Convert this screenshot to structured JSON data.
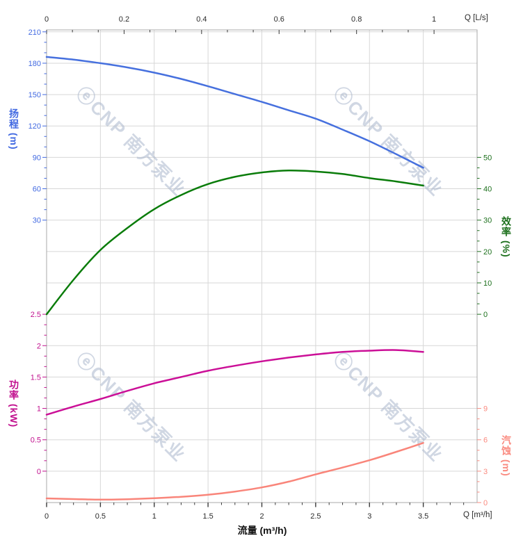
{
  "watermark": {
    "logo": "ⓔ",
    "text": "CNP 南方泵业",
    "color": "#a9b6cc"
  },
  "chart_data": {
    "type": "line",
    "title": "",
    "x_axis_bottom": {
      "label": "流量 (m³/h)",
      "unit": "Q [m³/h]",
      "min": 0,
      "max": 4,
      "major_step": 0.5,
      "minor_step": 0.125,
      "tick_labels": [
        "0",
        "0.5",
        "1",
        "1.5",
        "2",
        "2.5",
        "3",
        "3.5"
      ],
      "color": "#2b2b2b"
    },
    "x_axis_top": {
      "unit": "Q [L/s]",
      "min": 0,
      "max": 1,
      "major_step": 0.2,
      "minor_divisions": 3,
      "m3h_per_unit": 3.6,
      "tick_labels": [
        "0",
        "0.2",
        "0.4",
        "0.6",
        "0.8",
        "1"
      ],
      "color": "#2b2b2b"
    },
    "y_axes": [
      {
        "id": "head",
        "title": "扬程 (m)",
        "side": "left",
        "label_color": "#4169e1",
        "top_value": 210,
        "value_per_grid": 30,
        "grid_start": 0,
        "grid_end": 6,
        "minor_divisions": 3,
        "tick_labels": [
          "210",
          "180",
          "150",
          "120",
          "90",
          "60",
          "30"
        ]
      },
      {
        "id": "efficiency",
        "title": "效率 (%)",
        "side": "right",
        "label_color": "#1d701d",
        "top_value": 50,
        "value_per_grid": 10,
        "grid_start": 4,
        "grid_end": 9,
        "minor_divisions": 3,
        "tick_labels": [
          "50",
          "40",
          "30",
          "20",
          "10",
          "0"
        ]
      },
      {
        "id": "power",
        "title": "功率 (kW)",
        "side": "left",
        "label_color": "#c1108e",
        "top_value": 2.5,
        "value_per_grid": 0.5,
        "grid_start": 9,
        "grid_end": 14,
        "minor_divisions": 3,
        "tick_labels": [
          "2.5",
          "2",
          "1.5",
          "1",
          "0.5",
          "0"
        ]
      },
      {
        "id": "npsh",
        "title": "汽蚀 (m)",
        "side": "right",
        "label_color": "#fa8a7f",
        "top_value": 9,
        "value_per_grid": 3,
        "grid_start": 12,
        "grid_end": 15,
        "minor_divisions": 3,
        "tick_labels": [
          "9",
          "6",
          "3",
          "0"
        ]
      }
    ],
    "series": [
      {
        "name": "head",
        "axis": "head",
        "color": "#4670de",
        "points": [
          [
            0,
            186
          ],
          [
            0.25,
            183.5
          ],
          [
            0.5,
            180
          ],
          [
            0.75,
            176
          ],
          [
            1,
            171
          ],
          [
            1.25,
            165
          ],
          [
            1.5,
            158
          ],
          [
            1.75,
            150.5
          ],
          [
            2,
            143
          ],
          [
            2.25,
            135
          ],
          [
            2.5,
            127
          ],
          [
            2.75,
            116.5
          ],
          [
            3,
            105.5
          ],
          [
            3.25,
            93
          ],
          [
            3.5,
            80
          ]
        ]
      },
      {
        "name": "efficiency",
        "axis": "efficiency",
        "color": "#0a7c0a",
        "points": [
          [
            0,
            0
          ],
          [
            0.25,
            11
          ],
          [
            0.5,
            20.5
          ],
          [
            0.75,
            27.5
          ],
          [
            1,
            33.5
          ],
          [
            1.25,
            38
          ],
          [
            1.5,
            41.5
          ],
          [
            1.75,
            43.8
          ],
          [
            2,
            45.2
          ],
          [
            2.25,
            45.8
          ],
          [
            2.5,
            45.5
          ],
          [
            2.75,
            44.7
          ],
          [
            3,
            43.4
          ],
          [
            3.25,
            42.3
          ],
          [
            3.5,
            41
          ]
        ]
      },
      {
        "name": "power",
        "axis": "power",
        "color": "#cb0f97",
        "points": [
          [
            0,
            0.9
          ],
          [
            0.25,
            1.03
          ],
          [
            0.5,
            1.15
          ],
          [
            0.75,
            1.28
          ],
          [
            1,
            1.4
          ],
          [
            1.25,
            1.5
          ],
          [
            1.5,
            1.6
          ],
          [
            1.75,
            1.68
          ],
          [
            2,
            1.75
          ],
          [
            2.25,
            1.81
          ],
          [
            2.5,
            1.86
          ],
          [
            2.75,
            1.9
          ],
          [
            3,
            1.92
          ],
          [
            3.25,
            1.93
          ],
          [
            3.5,
            1.9
          ]
        ]
      },
      {
        "name": "npsh",
        "axis": "npsh",
        "color": "#f9857a",
        "points": [
          [
            0,
            0.4
          ],
          [
            0.25,
            0.33
          ],
          [
            0.5,
            0.28
          ],
          [
            0.75,
            0.32
          ],
          [
            1,
            0.42
          ],
          [
            1.25,
            0.55
          ],
          [
            1.5,
            0.75
          ],
          [
            1.75,
            1.05
          ],
          [
            2,
            1.45
          ],
          [
            2.25,
            2.0
          ],
          [
            2.5,
            2.7
          ],
          [
            2.75,
            3.35
          ],
          [
            3,
            4.05
          ],
          [
            3.25,
            4.85
          ],
          [
            3.5,
            5.7
          ]
        ]
      }
    ],
    "layout_hints": {
      "grid": true,
      "legend": false
    }
  }
}
